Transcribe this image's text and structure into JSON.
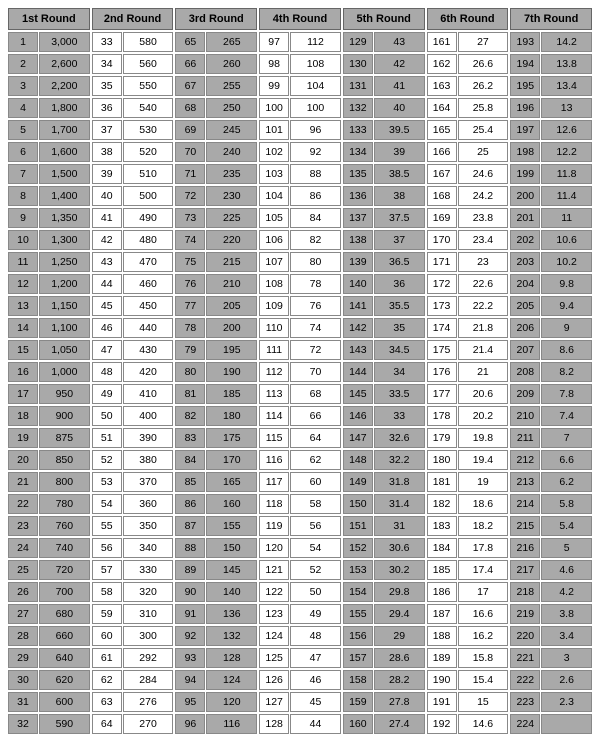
{
  "headers": [
    "1st Round",
    "2nd Round",
    "3rd Round",
    "4th Round",
    "5th Round",
    "6th Round",
    "7th Round"
  ],
  "shaded_cols": [
    true,
    false,
    true,
    false,
    true,
    false,
    true
  ],
  "rounds": [
    [
      [
        1,
        "3,000"
      ],
      [
        2,
        "2,600"
      ],
      [
        3,
        "2,200"
      ],
      [
        4,
        "1,800"
      ],
      [
        5,
        "1,700"
      ],
      [
        6,
        "1,600"
      ],
      [
        7,
        "1,500"
      ],
      [
        8,
        "1,400"
      ],
      [
        9,
        "1,350"
      ],
      [
        10,
        "1,300"
      ],
      [
        11,
        "1,250"
      ],
      [
        12,
        "1,200"
      ],
      [
        13,
        "1,150"
      ],
      [
        14,
        "1,100"
      ],
      [
        15,
        "1,050"
      ],
      [
        16,
        "1,000"
      ],
      [
        17,
        "950"
      ],
      [
        18,
        "900"
      ],
      [
        19,
        "875"
      ],
      [
        20,
        "850"
      ],
      [
        21,
        "800"
      ],
      [
        22,
        "780"
      ],
      [
        23,
        "760"
      ],
      [
        24,
        "740"
      ],
      [
        25,
        "720"
      ],
      [
        26,
        "700"
      ],
      [
        27,
        "680"
      ],
      [
        28,
        "660"
      ],
      [
        29,
        "640"
      ],
      [
        30,
        "620"
      ],
      [
        31,
        "600"
      ],
      [
        32,
        "590"
      ]
    ],
    [
      [
        33,
        "580"
      ],
      [
        34,
        "560"
      ],
      [
        35,
        "550"
      ],
      [
        36,
        "540"
      ],
      [
        37,
        "530"
      ],
      [
        38,
        "520"
      ],
      [
        39,
        "510"
      ],
      [
        40,
        "500"
      ],
      [
        41,
        "490"
      ],
      [
        42,
        "480"
      ],
      [
        43,
        "470"
      ],
      [
        44,
        "460"
      ],
      [
        45,
        "450"
      ],
      [
        46,
        "440"
      ],
      [
        47,
        "430"
      ],
      [
        48,
        "420"
      ],
      [
        49,
        "410"
      ],
      [
        50,
        "400"
      ],
      [
        51,
        "390"
      ],
      [
        52,
        "380"
      ],
      [
        53,
        "370"
      ],
      [
        54,
        "360"
      ],
      [
        55,
        "350"
      ],
      [
        56,
        "340"
      ],
      [
        57,
        "330"
      ],
      [
        58,
        "320"
      ],
      [
        59,
        "310"
      ],
      [
        60,
        "300"
      ],
      [
        61,
        "292"
      ],
      [
        62,
        "284"
      ],
      [
        63,
        "276"
      ],
      [
        64,
        "270"
      ]
    ],
    [
      [
        65,
        "265"
      ],
      [
        66,
        "260"
      ],
      [
        67,
        "255"
      ],
      [
        68,
        "250"
      ],
      [
        69,
        "245"
      ],
      [
        70,
        "240"
      ],
      [
        71,
        "235"
      ],
      [
        72,
        "230"
      ],
      [
        73,
        "225"
      ],
      [
        74,
        "220"
      ],
      [
        75,
        "215"
      ],
      [
        76,
        "210"
      ],
      [
        77,
        "205"
      ],
      [
        78,
        "200"
      ],
      [
        79,
        "195"
      ],
      [
        80,
        "190"
      ],
      [
        81,
        "185"
      ],
      [
        82,
        "180"
      ],
      [
        83,
        "175"
      ],
      [
        84,
        "170"
      ],
      [
        85,
        "165"
      ],
      [
        86,
        "160"
      ],
      [
        87,
        "155"
      ],
      [
        88,
        "150"
      ],
      [
        89,
        "145"
      ],
      [
        90,
        "140"
      ],
      [
        91,
        "136"
      ],
      [
        92,
        "132"
      ],
      [
        93,
        "128"
      ],
      [
        94,
        "124"
      ],
      [
        95,
        "120"
      ],
      [
        96,
        "116"
      ]
    ],
    [
      [
        97,
        "112"
      ],
      [
        98,
        "108"
      ],
      [
        99,
        "104"
      ],
      [
        100,
        "100"
      ],
      [
        101,
        "96"
      ],
      [
        102,
        "92"
      ],
      [
        103,
        "88"
      ],
      [
        104,
        "86"
      ],
      [
        105,
        "84"
      ],
      [
        106,
        "82"
      ],
      [
        107,
        "80"
      ],
      [
        108,
        "78"
      ],
      [
        109,
        "76"
      ],
      [
        110,
        "74"
      ],
      [
        111,
        "72"
      ],
      [
        112,
        "70"
      ],
      [
        113,
        "68"
      ],
      [
        114,
        "66"
      ],
      [
        115,
        "64"
      ],
      [
        116,
        "62"
      ],
      [
        117,
        "60"
      ],
      [
        118,
        "58"
      ],
      [
        119,
        "56"
      ],
      [
        120,
        "54"
      ],
      [
        121,
        "52"
      ],
      [
        122,
        "50"
      ],
      [
        123,
        "49"
      ],
      [
        124,
        "48"
      ],
      [
        125,
        "47"
      ],
      [
        126,
        "46"
      ],
      [
        127,
        "45"
      ],
      [
        128,
        "44"
      ]
    ],
    [
      [
        129,
        "43"
      ],
      [
        130,
        "42"
      ],
      [
        131,
        "41"
      ],
      [
        132,
        "40"
      ],
      [
        133,
        "39.5"
      ],
      [
        134,
        "39"
      ],
      [
        135,
        "38.5"
      ],
      [
        136,
        "38"
      ],
      [
        137,
        "37.5"
      ],
      [
        138,
        "37"
      ],
      [
        139,
        "36.5"
      ],
      [
        140,
        "36"
      ],
      [
        141,
        "35.5"
      ],
      [
        142,
        "35"
      ],
      [
        143,
        "34.5"
      ],
      [
        144,
        "34"
      ],
      [
        145,
        "33.5"
      ],
      [
        146,
        "33"
      ],
      [
        147,
        "32.6"
      ],
      [
        148,
        "32.2"
      ],
      [
        149,
        "31.8"
      ],
      [
        150,
        "31.4"
      ],
      [
        151,
        "31"
      ],
      [
        152,
        "30.6"
      ],
      [
        153,
        "30.2"
      ],
      [
        154,
        "29.8"
      ],
      [
        155,
        "29.4"
      ],
      [
        156,
        "29"
      ],
      [
        157,
        "28.6"
      ],
      [
        158,
        "28.2"
      ],
      [
        159,
        "27.8"
      ],
      [
        160,
        "27.4"
      ]
    ],
    [
      [
        161,
        "27"
      ],
      [
        162,
        "26.6"
      ],
      [
        163,
        "26.2"
      ],
      [
        164,
        "25.8"
      ],
      [
        165,
        "25.4"
      ],
      [
        166,
        "25"
      ],
      [
        167,
        "24.6"
      ],
      [
        168,
        "24.2"
      ],
      [
        169,
        "23.8"
      ],
      [
        170,
        "23.4"
      ],
      [
        171,
        "23"
      ],
      [
        172,
        "22.6"
      ],
      [
        173,
        "22.2"
      ],
      [
        174,
        "21.8"
      ],
      [
        175,
        "21.4"
      ],
      [
        176,
        "21"
      ],
      [
        177,
        "20.6"
      ],
      [
        178,
        "20.2"
      ],
      [
        179,
        "19.8"
      ],
      [
        180,
        "19.4"
      ],
      [
        181,
        "19"
      ],
      [
        182,
        "18.6"
      ],
      [
        183,
        "18.2"
      ],
      [
        184,
        "17.8"
      ],
      [
        185,
        "17.4"
      ],
      [
        186,
        "17"
      ],
      [
        187,
        "16.6"
      ],
      [
        188,
        "16.2"
      ],
      [
        189,
        "15.8"
      ],
      [
        190,
        "15.4"
      ],
      [
        191,
        "15"
      ],
      [
        192,
        "14.6"
      ]
    ],
    [
      [
        193,
        "14.2"
      ],
      [
        194,
        "13.8"
      ],
      [
        195,
        "13.4"
      ],
      [
        196,
        "13"
      ],
      [
        197,
        "12.6"
      ],
      [
        198,
        "12.2"
      ],
      [
        199,
        "11.8"
      ],
      [
        200,
        "11.4"
      ],
      [
        201,
        "11"
      ],
      [
        202,
        "10.6"
      ],
      [
        203,
        "10.2"
      ],
      [
        204,
        "9.8"
      ],
      [
        205,
        "9.4"
      ],
      [
        206,
        "9"
      ],
      [
        207,
        "8.6"
      ],
      [
        208,
        "8.2"
      ],
      [
        209,
        "7.8"
      ],
      [
        210,
        "7.4"
      ],
      [
        211,
        "7"
      ],
      [
        212,
        "6.6"
      ],
      [
        213,
        "6.2"
      ],
      [
        214,
        "5.8"
      ],
      [
        215,
        "5.4"
      ],
      [
        216,
        "5"
      ],
      [
        217,
        "4.6"
      ],
      [
        218,
        "4.2"
      ],
      [
        219,
        "3.8"
      ],
      [
        220,
        "3.4"
      ],
      [
        221,
        "3"
      ],
      [
        222,
        "2.6"
      ],
      [
        223,
        "2.3"
      ],
      [
        224,
        ""
      ]
    ]
  ]
}
